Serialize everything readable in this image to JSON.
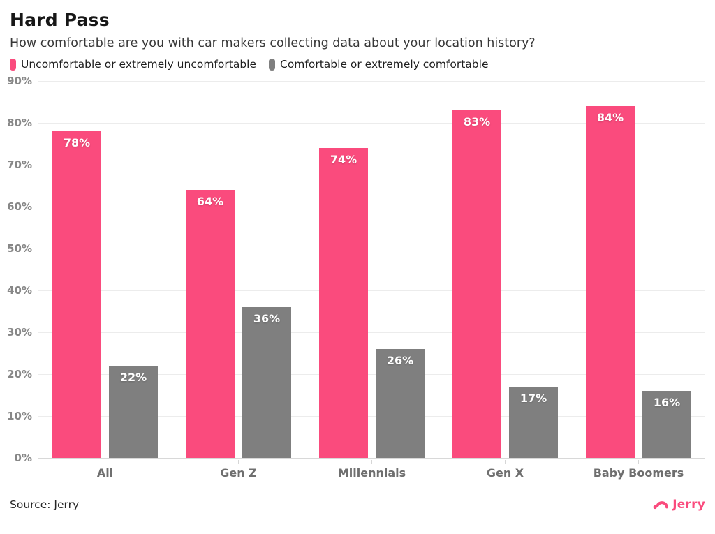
{
  "header": {
    "title": "Hard Pass",
    "subtitle": "How comfortable are you with car makers collecting data about your location history?"
  },
  "chart_data": {
    "type": "bar",
    "title": "Hard Pass",
    "subtitle": "How comfortable are you with car makers collecting data about your location history?",
    "categories": [
      "All",
      "Gen Z",
      "Millennials",
      "Gen X",
      "Baby Boomers"
    ],
    "series": [
      {
        "name": "Uncomfortable or extremely uncomfortable",
        "color": "#fa4b7d",
        "values": [
          78,
          64,
          74,
          83,
          84
        ]
      },
      {
        "name": "Comfortable or extremely comfortable",
        "color": "#7f7f7f",
        "values": [
          22,
          36,
          26,
          17,
          16
        ]
      }
    ],
    "value_suffix": "%",
    "ylim": [
      0,
      90
    ],
    "yticks": [
      0,
      10,
      20,
      30,
      40,
      50,
      60,
      70,
      80,
      90
    ],
    "ytick_suffix": "%",
    "grid": true,
    "legend_position": "top"
  },
  "footer": {
    "source": "Source: Jerry",
    "brand": "Jerry"
  },
  "colors": {
    "accent_pink": "#fa4b7d",
    "bar_gray": "#7f7f7f",
    "gridline": "#ececec",
    "axis_line": "#d8d8d8",
    "axis_text": "#878787",
    "category_text": "#6f6f6f"
  }
}
